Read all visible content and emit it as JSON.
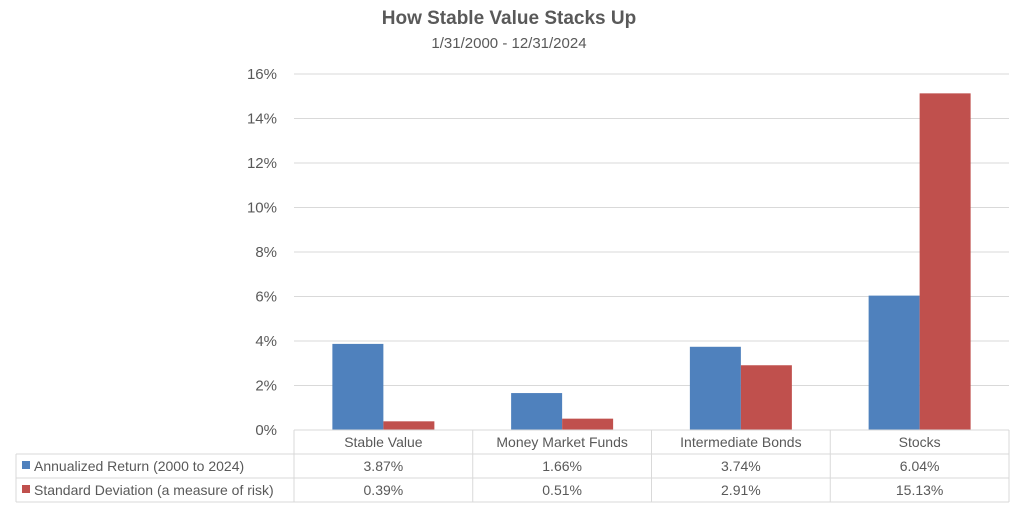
{
  "chart_data": {
    "type": "bar",
    "title": "How Stable Value Stacks Up",
    "subtitle": "1/31/2000 - 12/31/2024",
    "categories": [
      "Stable Value",
      "Money Market Funds",
      "Intermediate Bonds",
      "Stocks"
    ],
    "series": [
      {
        "name": "Annualized Return (2000 to 2024)",
        "color": "#4f81bd",
        "values": [
          3.87,
          1.66,
          3.74,
          6.04
        ],
        "labels": [
          "3.87%",
          "1.66%",
          "3.74%",
          "6.04%"
        ]
      },
      {
        "name": "Standard Deviation (a measure of risk)",
        "color": "#c0504d",
        "values": [
          0.39,
          0.51,
          2.91,
          15.13
        ],
        "labels": [
          "0.39%",
          "0.51%",
          "2.91%",
          "15.13%"
        ]
      }
    ],
    "ylim": [
      0,
      16
    ],
    "yticks": [
      "0%",
      "2%",
      "4%",
      "6%",
      "8%",
      "10%",
      "12%",
      "14%",
      "16%"
    ],
    "grid": true,
    "legend": "data-table"
  }
}
